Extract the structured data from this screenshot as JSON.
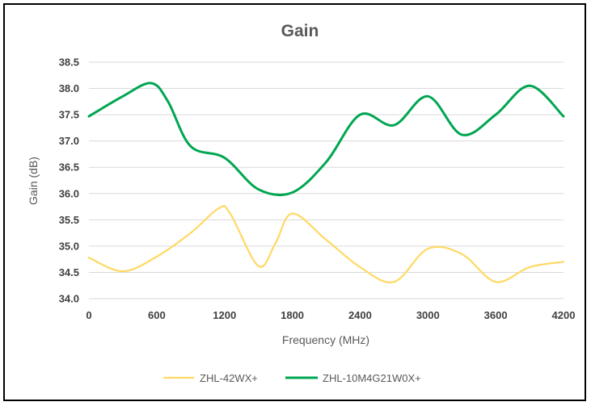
{
  "chart_data": {
    "type": "line",
    "title": "Gain",
    "xlabel": "Frequency (MHz)",
    "ylabel": "Gain (dB)",
    "xlim": [
      0,
      4200
    ],
    "ylim": [
      34.0,
      38.5
    ],
    "x_ticks": [
      "0",
      "600",
      "1200",
      "1800",
      "2400",
      "3000",
      "3600",
      "4200"
    ],
    "y_ticks": [
      "34.0",
      "34.5",
      "35.0",
      "35.5",
      "36.0",
      "36.5",
      "37.0",
      "37.5",
      "38.0",
      "38.5"
    ],
    "grid": "horizontal",
    "legend_position": "bottom",
    "series": [
      {
        "name": "ZHL-42WX+",
        "color": "#FFD966",
        "points": [
          [
            0,
            34.78
          ],
          [
            300,
            34.52
          ],
          [
            600,
            34.8
          ],
          [
            900,
            35.25
          ],
          [
            1150,
            35.72
          ],
          [
            1250,
            35.62
          ],
          [
            1500,
            34.62
          ],
          [
            1650,
            35.05
          ],
          [
            1800,
            35.62
          ],
          [
            2100,
            35.12
          ],
          [
            2400,
            34.6
          ],
          [
            2700,
            34.32
          ],
          [
            3000,
            34.95
          ],
          [
            3300,
            34.85
          ],
          [
            3600,
            34.32
          ],
          [
            3900,
            34.6
          ],
          [
            4200,
            34.7
          ]
        ]
      },
      {
        "name": "ZHL-10M4G21W0X+",
        "color": "#00A651",
        "points": [
          [
            0,
            37.47
          ],
          [
            300,
            37.85
          ],
          [
            550,
            38.1
          ],
          [
            700,
            37.75
          ],
          [
            900,
            36.9
          ],
          [
            1200,
            36.68
          ],
          [
            1500,
            36.08
          ],
          [
            1800,
            36.02
          ],
          [
            2100,
            36.6
          ],
          [
            2400,
            37.5
          ],
          [
            2700,
            37.3
          ],
          [
            3000,
            37.85
          ],
          [
            3300,
            37.12
          ],
          [
            3600,
            37.5
          ],
          [
            3900,
            38.05
          ],
          [
            4200,
            37.47
          ]
        ]
      }
    ]
  }
}
